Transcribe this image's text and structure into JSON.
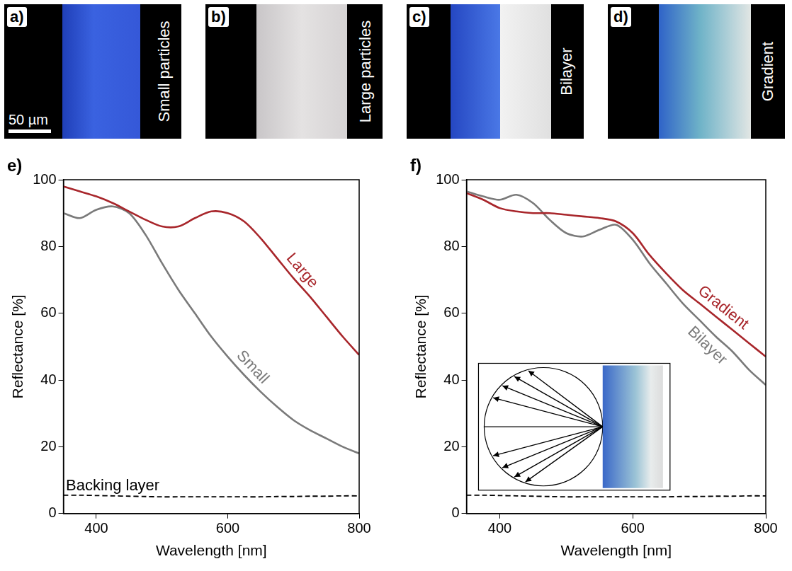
{
  "images": [
    {
      "letter": "a)",
      "label": "Small particles",
      "scale_bar": "50 µm"
    },
    {
      "letter": "b)",
      "label": "Large particles"
    },
    {
      "letter": "c)",
      "label": "Bilayer"
    },
    {
      "letter": "d)",
      "label": "Gradient"
    }
  ],
  "chart_data": [
    {
      "type": "line",
      "letter": "e)",
      "x_label": "Wavelength [nm]",
      "y_label": "Reflectance [%]",
      "x": [
        350,
        375,
        400,
        425,
        450,
        475,
        500,
        525,
        550,
        575,
        600,
        625,
        650,
        675,
        700,
        725,
        750,
        775,
        800
      ],
      "xlim": [
        350,
        800
      ],
      "xticks": [
        400,
        600,
        800
      ],
      "ylim": [
        0,
        100
      ],
      "yticks": [
        0,
        20,
        40,
        60,
        80,
        100
      ],
      "grid": false,
      "series": [
        {
          "name": "Large",
          "color": "#a8262b",
          "line_style": "solid",
          "values": [
            98,
            96.5,
            95,
            93,
            90.5,
            88,
            86,
            86,
            88.5,
            90.5,
            90,
            87.5,
            82.5,
            76.5,
            70.5,
            65,
            59,
            53,
            47.5
          ]
        },
        {
          "name": "Small",
          "color": "#7a7a7a",
          "line_style": "solid",
          "values": [
            90,
            88.5,
            91,
            92,
            90,
            83.5,
            75,
            67,
            60,
            53,
            47,
            41.5,
            36.5,
            32,
            28,
            25,
            22.5,
            20,
            18
          ]
        },
        {
          "name": "Backing layer",
          "color": "#000000",
          "line_style": "dashed",
          "values": [
            5.5,
            5.5,
            5.4,
            5.3,
            5.2,
            5.1,
            5,
            5,
            5,
            5,
            5,
            5,
            5,
            5.1,
            5.1,
            5.2,
            5.2,
            5.3,
            5.3
          ]
        }
      ]
    },
    {
      "type": "line",
      "letter": "f)",
      "x_label": "Wavelength [nm]",
      "y_label": "Reflectance [%]",
      "x": [
        350,
        375,
        400,
        425,
        450,
        475,
        500,
        525,
        550,
        575,
        600,
        625,
        650,
        675,
        700,
        725,
        750,
        775,
        800
      ],
      "xlim": [
        350,
        800
      ],
      "xticks": [
        400,
        600,
        800
      ],
      "ylim": [
        0,
        100
      ],
      "yticks": [
        0,
        20,
        40,
        60,
        80,
        100
      ],
      "grid": false,
      "series": [
        {
          "name": "Gradient",
          "color": "#a8262b",
          "line_style": "solid",
          "values": [
            96,
            94,
            91.5,
            90.5,
            90,
            90,
            89.5,
            89,
            88.5,
            87.5,
            84,
            77.5,
            72,
            67,
            63,
            59,
            55,
            51,
            47
          ]
        },
        {
          "name": "Bilayer",
          "color": "#7a7a7a",
          "line_style": "solid",
          "values": [
            96.5,
            95,
            94,
            95.5,
            93,
            88,
            84,
            83,
            85,
            86.5,
            82,
            75,
            69,
            63,
            58,
            53,
            48.5,
            43,
            38.5
          ]
        },
        {
          "color": "#000000",
          "line_style": "dashed",
          "values": [
            5.5,
            5.5,
            5.4,
            5.3,
            5.2,
            5.1,
            5,
            5,
            5,
            5,
            5,
            5,
            5,
            5.1,
            5.1,
            5.2,
            5.2,
            5.3,
            5.3
          ]
        }
      ]
    }
  ]
}
